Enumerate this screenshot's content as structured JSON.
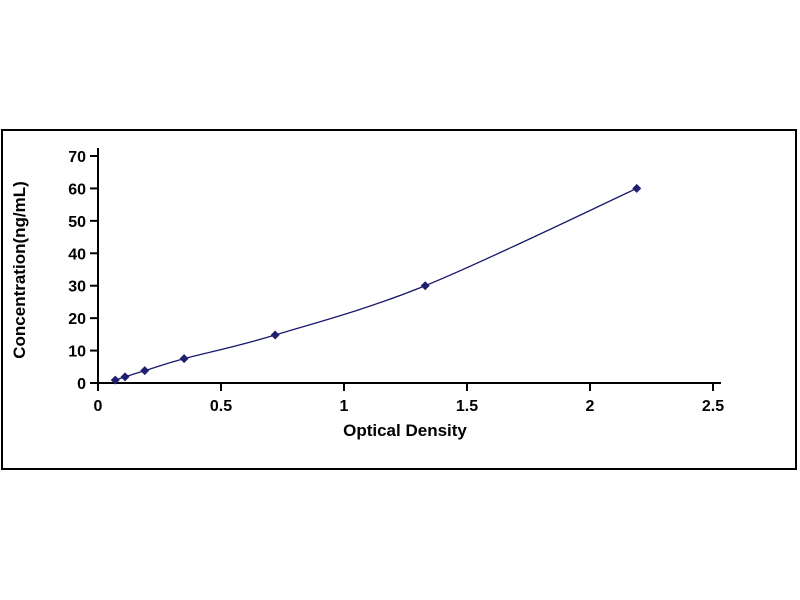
{
  "chart_data": {
    "type": "line",
    "title": "",
    "xlabel": "Optical Density",
    "ylabel": "Concentration(ng/mL)",
    "x": [
      0.07,
      0.11,
      0.19,
      0.35,
      0.72,
      1.33,
      2.19
    ],
    "y": [
      0.9,
      1.9,
      3.8,
      7.5,
      14.8,
      30,
      60
    ],
    "xlim": [
      0,
      2.5
    ],
    "ylim": [
      0,
      70
    ],
    "xticks": [
      0,
      0.5,
      1,
      1.5,
      2,
      2.5
    ],
    "yticks": [
      0,
      10,
      20,
      30,
      40,
      50,
      60,
      70
    ],
    "grid": false,
    "legend_position": "none",
    "marker": "diamond",
    "line_color": "#1a1a6e",
    "marker_color": "#1f1f70",
    "axis_color": "#000000"
  }
}
